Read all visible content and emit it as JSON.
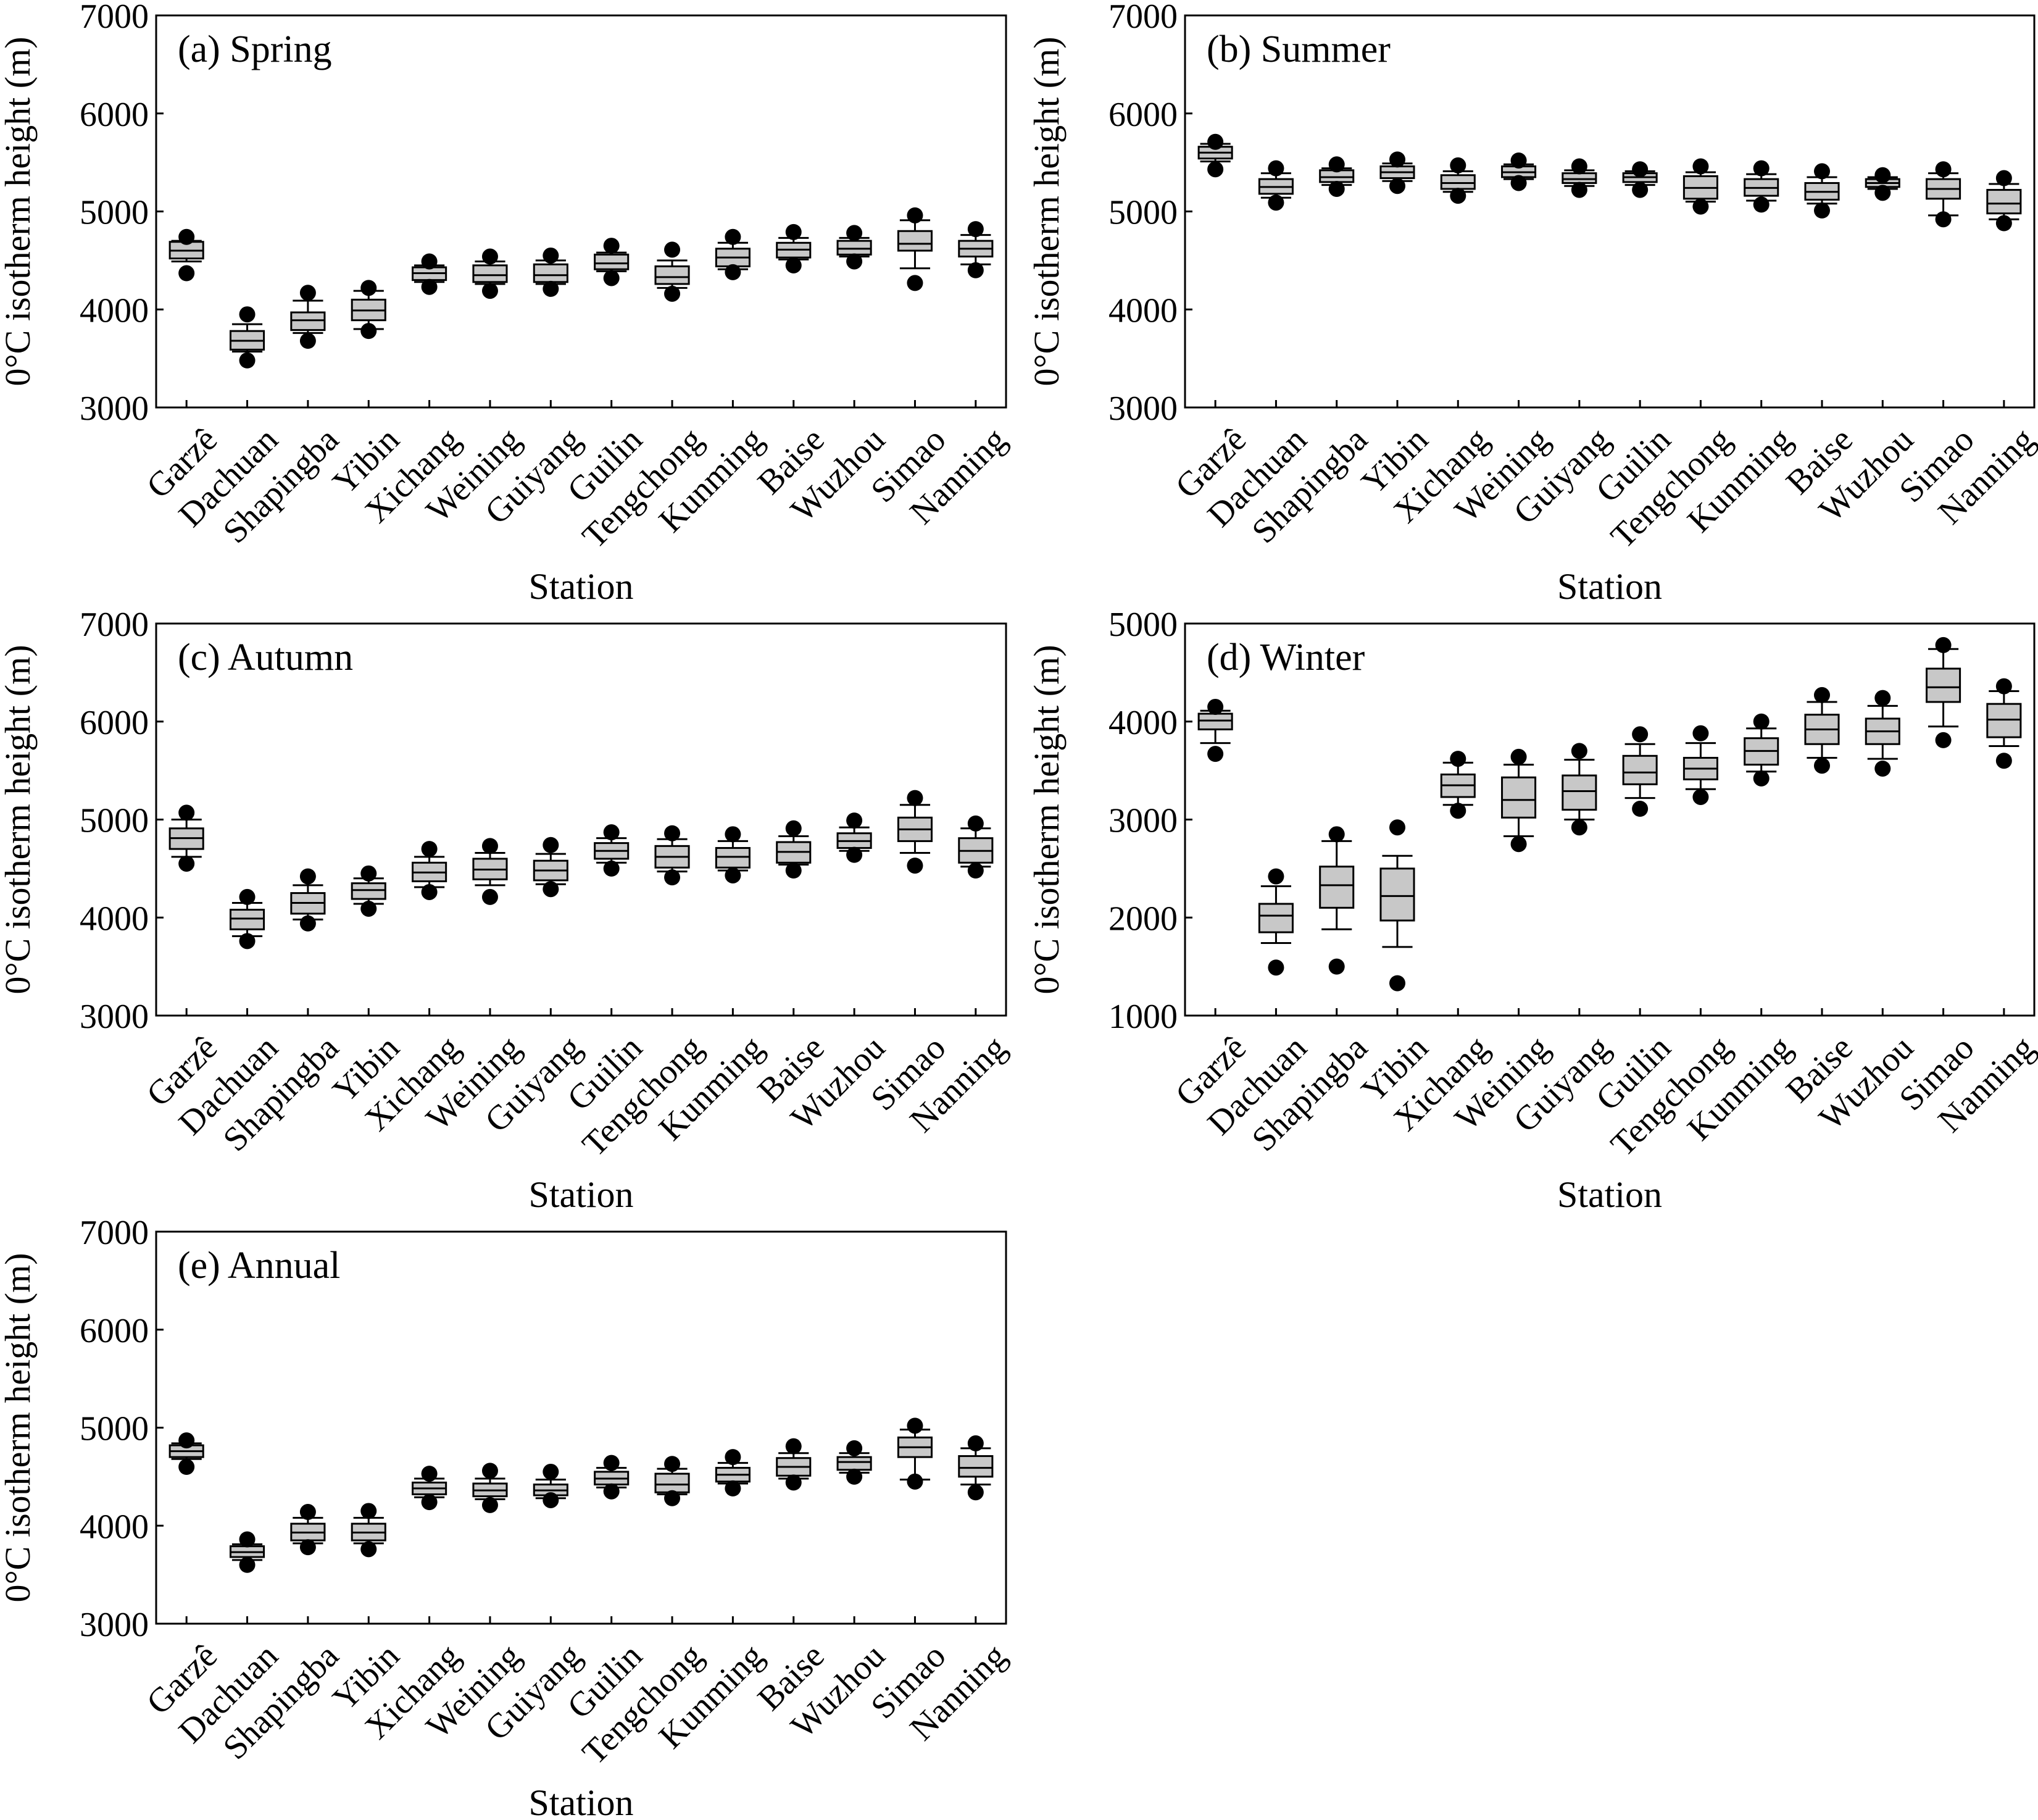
{
  "figure": {
    "stations": [
      "Garzê",
      "Dachuan",
      "Shapingba",
      "Yibin",
      "Xichang",
      "Weining",
      "Guiyang",
      "Guilin",
      "Tengchong",
      "Kunming",
      "Baise",
      "Wuzhou",
      "Simao",
      "Nanning"
    ],
    "xlabel": "Station",
    "ylabel": "0°C isotherm height (m)",
    "box_fill": "#c8c8c8",
    "line_color": "#000000"
  },
  "chart_data": [
    {
      "type": "box",
      "title": "(a) Spring",
      "ylim": [
        3000,
        7000
      ],
      "yticks": [
        3000,
        4000,
        5000,
        6000,
        7000
      ],
      "categories": [
        "Garzê",
        "Dachuan",
        "Shapingba",
        "Yibin",
        "Xichang",
        "Weining",
        "Guiyang",
        "Guilin",
        "Tengchong",
        "Kunming",
        "Baise",
        "Wuzhou",
        "Simao",
        "Nanning"
      ],
      "boxes": [
        {
          "wl": 4490,
          "q1": 4520,
          "med": 4600,
          "q3": 4690,
          "wh": 4700,
          "out": [
            4370,
            4740
          ]
        },
        {
          "wl": 3570,
          "q1": 3590,
          "med": 3680,
          "q3": 3780,
          "wh": 3850,
          "out": [
            3480,
            3950
          ]
        },
        {
          "wl": 3760,
          "q1": 3790,
          "med": 3890,
          "q3": 3970,
          "wh": 4090,
          "out": [
            3680,
            4170
          ]
        },
        {
          "wl": 3800,
          "q1": 3890,
          "med": 3990,
          "q3": 4100,
          "wh": 4190,
          "out": [
            3780,
            4220
          ]
        },
        {
          "wl": 4280,
          "q1": 4300,
          "med": 4370,
          "q3": 4430,
          "wh": 4450,
          "out": [
            4230,
            4490
          ]
        },
        {
          "wl": 4260,
          "q1": 4280,
          "med": 4350,
          "q3": 4450,
          "wh": 4490,
          "out": [
            4190,
            4540
          ]
        },
        {
          "wl": 4260,
          "q1": 4280,
          "med": 4350,
          "q3": 4460,
          "wh": 4500,
          "out": [
            4210,
            4550
          ]
        },
        {
          "wl": 4390,
          "q1": 4410,
          "med": 4470,
          "q3": 4560,
          "wh": 4580,
          "out": [
            4320,
            4650
          ]
        },
        {
          "wl": 4220,
          "q1": 4260,
          "med": 4330,
          "q3": 4440,
          "wh": 4500,
          "out": [
            4160,
            4610
          ]
        },
        {
          "wl": 4410,
          "q1": 4440,
          "med": 4530,
          "q3": 4620,
          "wh": 4680,
          "out": [
            4380,
            4740
          ]
        },
        {
          "wl": 4510,
          "q1": 4530,
          "med": 4610,
          "q3": 4680,
          "wh": 4730,
          "out": [
            4450,
            4790
          ]
        },
        {
          "wl": 4540,
          "q1": 4560,
          "med": 4620,
          "q3": 4700,
          "wh": 4730,
          "out": [
            4490,
            4780
          ]
        },
        {
          "wl": 4420,
          "q1": 4600,
          "med": 4670,
          "q3": 4800,
          "wh": 4910,
          "out": [
            4270,
            4960
          ]
        },
        {
          "wl": 4460,
          "q1": 4540,
          "med": 4620,
          "q3": 4700,
          "wh": 4760,
          "out": [
            4400,
            4820
          ]
        }
      ]
    },
    {
      "type": "box",
      "title": "(b) Summer",
      "ylim": [
        3000,
        7000
      ],
      "yticks": [
        3000,
        4000,
        5000,
        6000,
        7000
      ],
      "categories": [
        "Garzê",
        "Dachuan",
        "Shapingba",
        "Yibin",
        "Xichang",
        "Weining",
        "Guiyang",
        "Guilin",
        "Tengchong",
        "Kunming",
        "Baise",
        "Wuzhou",
        "Simao",
        "Nanning"
      ],
      "boxes": [
        {
          "wl": 5510,
          "q1": 5540,
          "med": 5600,
          "q3": 5660,
          "wh": 5690,
          "out": [
            5430,
            5710
          ]
        },
        {
          "wl": 5140,
          "q1": 5180,
          "med": 5250,
          "q3": 5330,
          "wh": 5390,
          "out": [
            5090,
            5440
          ]
        },
        {
          "wl": 5270,
          "q1": 5300,
          "med": 5350,
          "q3": 5420,
          "wh": 5440,
          "out": [
            5230,
            5480
          ]
        },
        {
          "wl": 5310,
          "q1": 5340,
          "med": 5400,
          "q3": 5460,
          "wh": 5490,
          "out": [
            5260,
            5530
          ]
        },
        {
          "wl": 5200,
          "q1": 5230,
          "med": 5290,
          "q3": 5370,
          "wh": 5410,
          "out": [
            5160,
            5470
          ]
        },
        {
          "wl": 5330,
          "q1": 5350,
          "med": 5400,
          "q3": 5460,
          "wh": 5480,
          "out": [
            5290,
            5520
          ]
        },
        {
          "wl": 5260,
          "q1": 5290,
          "med": 5330,
          "q3": 5390,
          "wh": 5420,
          "out": [
            5220,
            5460
          ]
        },
        {
          "wl": 5270,
          "q1": 5300,
          "med": 5350,
          "q3": 5390,
          "wh": 5410,
          "out": [
            5220,
            5430
          ]
        },
        {
          "wl": 5100,
          "q1": 5130,
          "med": 5240,
          "q3": 5360,
          "wh": 5400,
          "out": [
            5050,
            5460
          ]
        },
        {
          "wl": 5110,
          "q1": 5160,
          "med": 5240,
          "q3": 5330,
          "wh": 5380,
          "out": [
            5070,
            5440
          ]
        },
        {
          "wl": 5080,
          "q1": 5120,
          "med": 5200,
          "q3": 5290,
          "wh": 5350,
          "out": [
            5010,
            5410
          ]
        },
        {
          "wl": 5230,
          "q1": 5250,
          "med": 5290,
          "q3": 5330,
          "wh": 5350,
          "out": [
            5190,
            5370
          ]
        },
        {
          "wl": 4960,
          "q1": 5130,
          "med": 5230,
          "q3": 5330,
          "wh": 5390,
          "out": [
            4920,
            5430
          ]
        },
        {
          "wl": 4920,
          "q1": 4980,
          "med": 5080,
          "q3": 5220,
          "wh": 5280,
          "out": [
            4880,
            5340
          ]
        }
      ]
    },
    {
      "type": "box",
      "title": "(c) Autumn",
      "ylim": [
        3000,
        7000
      ],
      "yticks": [
        3000,
        4000,
        5000,
        6000,
        7000
      ],
      "categories": [
        "Garzê",
        "Dachuan",
        "Shapingba",
        "Yibin",
        "Xichang",
        "Weining",
        "Guiyang",
        "Guilin",
        "Tengchong",
        "Kunming",
        "Baise",
        "Wuzhou",
        "Simao",
        "Nanning"
      ],
      "boxes": [
        {
          "wl": 4620,
          "q1": 4700,
          "med": 4810,
          "q3": 4910,
          "wh": 5000,
          "out": [
            4550,
            5070
          ]
        },
        {
          "wl": 3810,
          "q1": 3880,
          "med": 3990,
          "q3": 4080,
          "wh": 4150,
          "out": [
            3760,
            4210
          ]
        },
        {
          "wl": 3980,
          "q1": 4040,
          "med": 4150,
          "q3": 4250,
          "wh": 4330,
          "out": [
            3940,
            4420
          ]
        },
        {
          "wl": 4140,
          "q1": 4190,
          "med": 4280,
          "q3": 4350,
          "wh": 4400,
          "out": [
            4090,
            4450
          ]
        },
        {
          "wl": 4310,
          "q1": 4370,
          "med": 4460,
          "q3": 4560,
          "wh": 4620,
          "out": [
            4260,
            4700
          ]
        },
        {
          "wl": 4330,
          "q1": 4390,
          "med": 4490,
          "q3": 4600,
          "wh": 4660,
          "out": [
            4210,
            4730
          ]
        },
        {
          "wl": 4340,
          "q1": 4380,
          "med": 4480,
          "q3": 4580,
          "wh": 4650,
          "out": [
            4290,
            4740
          ]
        },
        {
          "wl": 4560,
          "q1": 4600,
          "med": 4680,
          "q3": 4760,
          "wh": 4810,
          "out": [
            4500,
            4870
          ]
        },
        {
          "wl": 4470,
          "q1": 4510,
          "med": 4620,
          "q3": 4730,
          "wh": 4800,
          "out": [
            4410,
            4860
          ]
        },
        {
          "wl": 4480,
          "q1": 4510,
          "med": 4620,
          "q3": 4710,
          "wh": 4780,
          "out": [
            4430,
            4850
          ]
        },
        {
          "wl": 4540,
          "q1": 4560,
          "med": 4670,
          "q3": 4770,
          "wh": 4830,
          "out": [
            4480,
            4910
          ]
        },
        {
          "wl": 4680,
          "q1": 4710,
          "med": 4780,
          "q3": 4860,
          "wh": 4920,
          "out": [
            4640,
            4990
          ]
        },
        {
          "wl": 4660,
          "q1": 4780,
          "med": 4900,
          "q3": 5020,
          "wh": 5150,
          "out": [
            4530,
            5220
          ]
        },
        {
          "wl": 4520,
          "q1": 4560,
          "med": 4680,
          "q3": 4810,
          "wh": 4910,
          "out": [
            4480,
            4960
          ]
        }
      ]
    },
    {
      "type": "box",
      "title": "(d) Winter",
      "ylim": [
        1000,
        5000
      ],
      "yticks": [
        1000,
        2000,
        3000,
        4000,
        5000
      ],
      "categories": [
        "Garzê",
        "Dachuan",
        "Shapingba",
        "Yibin",
        "Xichang",
        "Weining",
        "Guiyang",
        "Guilin",
        "Tengchong",
        "Kunming",
        "Baise",
        "Wuzhou",
        "Simao",
        "Nanning"
      ],
      "boxes": [
        {
          "wl": 3780,
          "q1": 3920,
          "med": 4010,
          "q3": 4080,
          "wh": 4110,
          "out": [
            3670,
            4150
          ]
        },
        {
          "wl": 1740,
          "q1": 1850,
          "med": 2020,
          "q3": 2140,
          "wh": 2320,
          "out": [
            1490,
            2420
          ]
        },
        {
          "wl": 1880,
          "q1": 2100,
          "med": 2330,
          "q3": 2520,
          "wh": 2780,
          "out": [
            1500,
            2850
          ]
        },
        {
          "wl": 1700,
          "q1": 1970,
          "med": 2220,
          "q3": 2500,
          "wh": 2630,
          "out": [
            1330,
            2920
          ]
        },
        {
          "wl": 3150,
          "q1": 3230,
          "med": 3350,
          "q3": 3460,
          "wh": 3580,
          "out": [
            3090,
            3620
          ]
        },
        {
          "wl": 2830,
          "q1": 3020,
          "med": 3200,
          "q3": 3430,
          "wh": 3560,
          "out": [
            2750,
            3640
          ]
        },
        {
          "wl": 3000,
          "q1": 3100,
          "med": 3290,
          "q3": 3450,
          "wh": 3610,
          "out": [
            2920,
            3700
          ]
        },
        {
          "wl": 3220,
          "q1": 3360,
          "med": 3480,
          "q3": 3650,
          "wh": 3770,
          "out": [
            3110,
            3870
          ]
        },
        {
          "wl": 3310,
          "q1": 3410,
          "med": 3520,
          "q3": 3630,
          "wh": 3780,
          "out": [
            3230,
            3880
          ]
        },
        {
          "wl": 3490,
          "q1": 3560,
          "med": 3700,
          "q3": 3830,
          "wh": 3930,
          "out": [
            3420,
            4000
          ]
        },
        {
          "wl": 3630,
          "q1": 3770,
          "med": 3920,
          "q3": 4070,
          "wh": 4200,
          "out": [
            3550,
            4270
          ]
        },
        {
          "wl": 3620,
          "q1": 3770,
          "med": 3900,
          "q3": 4030,
          "wh": 4160,
          "out": [
            3520,
            4240
          ]
        },
        {
          "wl": 3950,
          "q1": 4200,
          "med": 4350,
          "q3": 4540,
          "wh": 4740,
          "out": [
            3810,
            4780
          ]
        },
        {
          "wl": 3750,
          "q1": 3840,
          "med": 4020,
          "q3": 4180,
          "wh": 4310,
          "out": [
            3600,
            4360
          ]
        }
      ]
    },
    {
      "type": "box",
      "title": "(e) Annual",
      "ylim": [
        3000,
        7000
      ],
      "yticks": [
        3000,
        4000,
        5000,
        6000,
        7000
      ],
      "categories": [
        "Garzê",
        "Dachuan",
        "Shapingba",
        "Yibin",
        "Xichang",
        "Weining",
        "Guiyang",
        "Guilin",
        "Tengchong",
        "Kunming",
        "Baise",
        "Wuzhou",
        "Simao",
        "Nanning"
      ],
      "boxes": [
        {
          "wl": 4680,
          "q1": 4700,
          "med": 4760,
          "q3": 4820,
          "wh": 4840,
          "out": [
            4600,
            4870
          ]
        },
        {
          "wl": 3650,
          "q1": 3680,
          "med": 3730,
          "q3": 3790,
          "wh": 3810,
          "out": [
            3600,
            3860
          ]
        },
        {
          "wl": 3820,
          "q1": 3850,
          "med": 3930,
          "q3": 4020,
          "wh": 4080,
          "out": [
            3780,
            4140
          ]
        },
        {
          "wl": 3820,
          "q1": 3850,
          "med": 3930,
          "q3": 4020,
          "wh": 4080,
          "out": [
            3760,
            4150
          ]
        },
        {
          "wl": 4290,
          "q1": 4320,
          "med": 4380,
          "q3": 4440,
          "wh": 4480,
          "out": [
            4240,
            4530
          ]
        },
        {
          "wl": 4270,
          "q1": 4300,
          "med": 4360,
          "q3": 4430,
          "wh": 4480,
          "out": [
            4210,
            4560
          ]
        },
        {
          "wl": 4280,
          "q1": 4310,
          "med": 4360,
          "q3": 4420,
          "wh": 4470,
          "out": [
            4260,
            4550
          ]
        },
        {
          "wl": 4390,
          "q1": 4420,
          "med": 4480,
          "q3": 4550,
          "wh": 4590,
          "out": [
            4350,
            4640
          ]
        },
        {
          "wl": 4320,
          "q1": 4340,
          "med": 4420,
          "q3": 4530,
          "wh": 4580,
          "out": [
            4280,
            4630
          ]
        },
        {
          "wl": 4430,
          "q1": 4450,
          "med": 4520,
          "q3": 4590,
          "wh": 4640,
          "out": [
            4380,
            4700
          ]
        },
        {
          "wl": 4480,
          "q1": 4510,
          "med": 4600,
          "q3": 4690,
          "wh": 4740,
          "out": [
            4440,
            4810
          ]
        },
        {
          "wl": 4540,
          "q1": 4570,
          "med": 4650,
          "q3": 4700,
          "wh": 4740,
          "out": [
            4500,
            4790
          ]
        },
        {
          "wl": 4470,
          "q1": 4700,
          "med": 4800,
          "q3": 4900,
          "wh": 4980,
          "out": [
            4450,
            5020
          ]
        },
        {
          "wl": 4420,
          "q1": 4500,
          "med": 4590,
          "q3": 4710,
          "wh": 4790,
          "out": [
            4340,
            4840
          ]
        }
      ]
    }
  ]
}
